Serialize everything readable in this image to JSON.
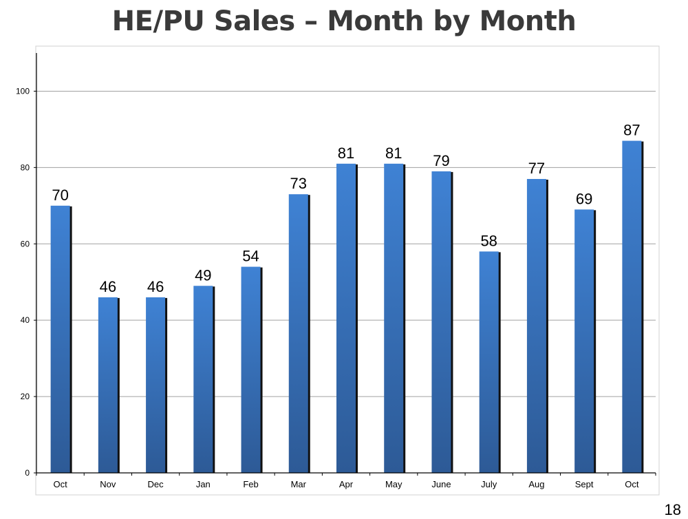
{
  "slide": {
    "title": "HE/PU Sales – Month by Month",
    "page_number": "18"
  },
  "colors": {
    "bar_top": "#3f82d4",
    "bar_bottom": "#2d5a96",
    "bar_shadow": "#111111",
    "grid": "#a0a0a0",
    "axis": "#000000",
    "frame": "#d0d0d0"
  },
  "chart_data": {
    "type": "bar",
    "categories": [
      "Oct",
      "Nov",
      "Dec",
      "Jan",
      "Feb",
      "Mar",
      "Apr",
      "May",
      "June",
      "July",
      "Aug",
      "Sept",
      "Oct"
    ],
    "values": [
      70,
      46,
      46,
      49,
      54,
      73,
      81,
      81,
      79,
      58,
      77,
      69,
      87
    ],
    "ylim": [
      0,
      110
    ],
    "yticks": [
      0,
      20,
      40,
      60,
      80,
      100
    ],
    "grid": true,
    "data_labels": true
  }
}
